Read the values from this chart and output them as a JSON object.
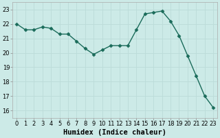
{
  "x": [
    0,
    1,
    2,
    3,
    4,
    5,
    6,
    7,
    8,
    9,
    10,
    11,
    12,
    13,
    14,
    15,
    16,
    17,
    18,
    19,
    20,
    21,
    22,
    23
  ],
  "y": [
    22.0,
    21.6,
    21.6,
    21.8,
    21.7,
    21.3,
    21.3,
    20.8,
    20.3,
    19.9,
    20.2,
    20.5,
    20.5,
    20.5,
    21.6,
    22.7,
    22.8,
    22.9,
    22.2,
    21.2,
    19.8,
    18.4,
    17.0,
    16.2
  ],
  "line_color": "#1a6b5a",
  "marker_color": "#1a6b5a",
  "bg_color": "#cceae7",
  "grid_color": "#bbdbd8",
  "xlabel": "Humidex (Indice chaleur)",
  "xlim": [
    -0.5,
    23.5
  ],
  "ylim": [
    15.5,
    23.5
  ],
  "yticks": [
    16,
    17,
    18,
    19,
    20,
    21,
    22,
    23
  ],
  "xticks": [
    0,
    1,
    2,
    3,
    4,
    5,
    6,
    7,
    8,
    9,
    10,
    11,
    12,
    13,
    14,
    15,
    16,
    17,
    18,
    19,
    20,
    21,
    22,
    23
  ],
  "tick_fontsize": 6,
  "label_fontsize": 7.5,
  "linewidth": 1.0,
  "markersize": 2.5
}
